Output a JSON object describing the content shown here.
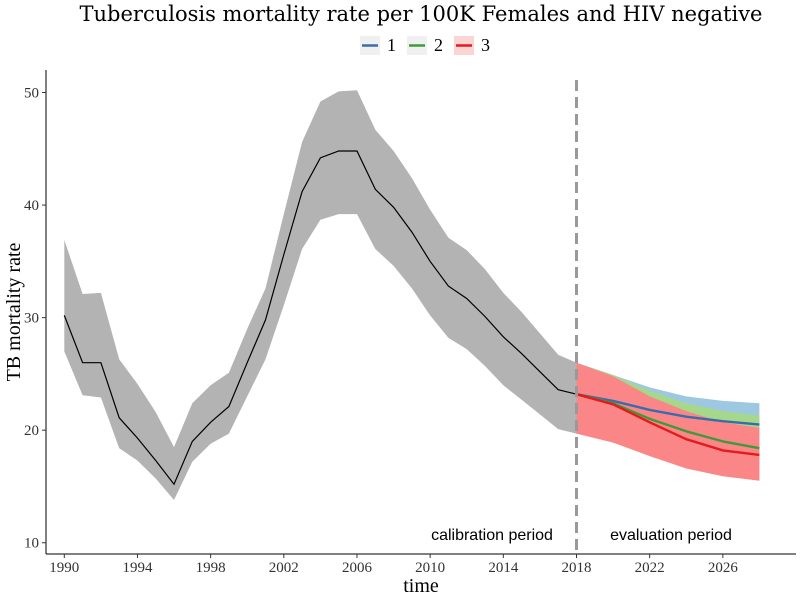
{
  "chart_data": {
    "type": "line",
    "title": "Tuberculosis mortality rate per 100K Females and HIV negative",
    "xlabel": "time",
    "ylabel": "TB mortality rate",
    "xlim": [
      1989,
      2030
    ],
    "ylim": [
      9,
      52
    ],
    "x_ticks": [
      1990,
      1994,
      1998,
      2002,
      2006,
      2010,
      2014,
      2018,
      2022,
      2026
    ],
    "y_ticks": [
      10,
      20,
      30,
      40,
      50
    ],
    "grid": false,
    "legend_position": "top-center",
    "legend": [
      {
        "label": "1",
        "color": "#3a6cad",
        "fill": "#9ec8e2"
      },
      {
        "label": "2",
        "color": "#3f9a3a",
        "fill": "#a5d88a"
      },
      {
        "label": "3",
        "color": "#e41a1c",
        "fill": "#fb8687"
      }
    ],
    "calibration": {
      "color": "#000000",
      "band_color": "#b3b3b3",
      "x": [
        1990,
        1991,
        1992,
        1993,
        1994,
        1995,
        1996,
        1997,
        1998,
        1999,
        2000,
        2001,
        2002,
        2003,
        2004,
        2005,
        2006,
        2007,
        2008,
        2009,
        2010,
        2011,
        2012,
        2013,
        2014,
        2015,
        2016,
        2017,
        2018
      ],
      "y": [
        30.2,
        26.0,
        26.0,
        21.1,
        19.3,
        17.3,
        15.2,
        19.0,
        20.7,
        22.1,
        26.0,
        29.8,
        35.6,
        41.2,
        44.2,
        44.8,
        44.8,
        41.4,
        39.8,
        37.6,
        35.0,
        32.8,
        31.7,
        30.1,
        28.3,
        26.8,
        25.2,
        23.6,
        23.2
      ],
      "lower": [
        27.0,
        23.1,
        22.9,
        18.4,
        17.3,
        15.7,
        13.8,
        17.2,
        18.8,
        19.7,
        23.0,
        26.3,
        31.1,
        36.1,
        38.7,
        39.2,
        39.2,
        36.1,
        34.6,
        32.6,
        30.2,
        28.2,
        27.2,
        25.7,
        24.0,
        22.7,
        21.4,
        20.1,
        19.7
      ],
      "upper": [
        36.9,
        32.1,
        32.2,
        26.3,
        24.1,
        21.6,
        18.5,
        22.4,
        24.0,
        25.1,
        29.0,
        32.6,
        39.2,
        45.6,
        49.2,
        50.1,
        50.2,
        46.7,
        44.8,
        42.4,
        39.6,
        37.1,
        36.0,
        34.3,
        32.2,
        30.5,
        28.6,
        26.7,
        26.0
      ]
    },
    "series": [
      {
        "name": "1",
        "color": "#3a6cad",
        "band_color": "#9ec8e2",
        "x": [
          2018,
          2020,
          2022,
          2024,
          2026,
          2028
        ],
        "y": [
          23.2,
          22.6,
          21.8,
          21.2,
          20.8,
          20.5
        ],
        "lower": [
          19.7,
          19.7,
          19.7,
          19.7,
          19.7,
          19.7
        ],
        "upper": [
          26.0,
          24.9,
          23.8,
          23.0,
          22.6,
          22.4
        ]
      },
      {
        "name": "2",
        "color": "#3f9a3a",
        "band_color": "#a5d88a",
        "x": [
          2018,
          2020,
          2022,
          2024,
          2026,
          2028
        ],
        "y": [
          23.2,
          22.4,
          21.0,
          19.9,
          19.0,
          18.4
        ],
        "lower": [
          19.7,
          19.3,
          18.5,
          17.8,
          17.2,
          16.9
        ],
        "upper": [
          26.0,
          24.9,
          23.5,
          22.4,
          21.7,
          21.3
        ]
      },
      {
        "name": "3",
        "color": "#e41a1c",
        "band_color": "#fb8687",
        "x": [
          2018,
          2020,
          2022,
          2024,
          2026,
          2028
        ],
        "y": [
          23.2,
          22.3,
          20.7,
          19.2,
          18.2,
          17.8
        ],
        "lower": [
          19.7,
          18.9,
          17.7,
          16.6,
          15.9,
          15.5
        ],
        "upper": [
          26.0,
          24.8,
          23.0,
          21.7,
          20.7,
          20.2
        ]
      }
    ],
    "vline": {
      "x": 2018,
      "color": "#999999",
      "style": "dashed"
    },
    "annotations": [
      {
        "text": "calibration period",
        "x": 2012.5,
        "y": 10
      },
      {
        "text": "evaluation period",
        "x": 2023.3,
        "y": 10
      }
    ]
  }
}
